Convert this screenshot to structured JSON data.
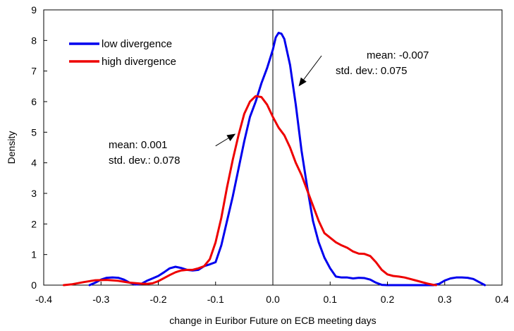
{
  "chart_data": {
    "type": "line",
    "title": "",
    "xlabel": "change in Euribor Future on ECB meeting days",
    "ylabel": "Density",
    "xlim": [
      -0.4,
      0.4
    ],
    "ylim": [
      0,
      9
    ],
    "xticks": [
      -0.4,
      -0.3,
      -0.2,
      -0.1,
      0.0,
      0.1,
      0.2,
      0.3,
      0.4
    ],
    "xtick_labels": [
      "-0.4",
      "-0.3",
      "-0.2",
      "-0.1",
      "0.0",
      "0.1",
      "0.2",
      "0.3",
      "0.4"
    ],
    "yticks": [
      0,
      1,
      2,
      3,
      4,
      5,
      6,
      7,
      8,
      9
    ],
    "ytick_labels": [
      "0",
      "1",
      "2",
      "3",
      "4",
      "5",
      "6",
      "7",
      "8",
      "9"
    ],
    "grid": false,
    "reference_line": {
      "x": 0.0,
      "color": "#000000"
    },
    "legend": {
      "position": "top-left"
    },
    "series": [
      {
        "name": "low divergence",
        "color": "#0000ee",
        "points": [
          [
            -0.32,
            0.0
          ],
          [
            -0.31,
            0.08
          ],
          [
            -0.3,
            0.18
          ],
          [
            -0.29,
            0.24
          ],
          [
            -0.28,
            0.25
          ],
          [
            -0.27,
            0.24
          ],
          [
            -0.26,
            0.18
          ],
          [
            -0.25,
            0.08
          ],
          [
            -0.24,
            0.02
          ],
          [
            -0.23,
            0.04
          ],
          [
            -0.22,
            0.14
          ],
          [
            -0.21,
            0.22
          ],
          [
            -0.2,
            0.3
          ],
          [
            -0.19,
            0.42
          ],
          [
            -0.18,
            0.55
          ],
          [
            -0.17,
            0.6
          ],
          [
            -0.16,
            0.56
          ],
          [
            -0.15,
            0.5
          ],
          [
            -0.14,
            0.48
          ],
          [
            -0.13,
            0.5
          ],
          [
            -0.12,
            0.62
          ],
          [
            -0.11,
            0.68
          ],
          [
            -0.1,
            0.75
          ],
          [
            -0.09,
            1.3
          ],
          [
            -0.08,
            2.1
          ],
          [
            -0.07,
            2.9
          ],
          [
            -0.06,
            3.8
          ],
          [
            -0.05,
            4.7
          ],
          [
            -0.04,
            5.5
          ],
          [
            -0.03,
            6.0
          ],
          [
            -0.02,
            6.6
          ],
          [
            -0.01,
            7.1
          ],
          [
            0.0,
            7.7
          ],
          [
            0.005,
            8.1
          ],
          [
            0.01,
            8.25
          ],
          [
            0.015,
            8.22
          ],
          [
            0.02,
            8.05
          ],
          [
            0.03,
            7.2
          ],
          [
            0.04,
            5.9
          ],
          [
            0.05,
            4.4
          ],
          [
            0.06,
            3.2
          ],
          [
            0.07,
            2.1
          ],
          [
            0.08,
            1.4
          ],
          [
            0.09,
            0.9
          ],
          [
            0.1,
            0.55
          ],
          [
            0.11,
            0.28
          ],
          [
            0.12,
            0.25
          ],
          [
            0.13,
            0.25
          ],
          [
            0.14,
            0.22
          ],
          [
            0.15,
            0.24
          ],
          [
            0.16,
            0.23
          ],
          [
            0.17,
            0.18
          ],
          [
            0.18,
            0.08
          ],
          [
            0.19,
            0.01
          ],
          [
            0.2,
            0.0
          ],
          [
            0.25,
            0.0
          ],
          [
            0.28,
            0.0
          ],
          [
            0.29,
            0.04
          ],
          [
            0.3,
            0.15
          ],
          [
            0.31,
            0.22
          ],
          [
            0.32,
            0.25
          ],
          [
            0.33,
            0.25
          ],
          [
            0.34,
            0.24
          ],
          [
            0.35,
            0.2
          ],
          [
            0.36,
            0.1
          ],
          [
            0.37,
            0.0
          ]
        ]
      },
      {
        "name": "high divergence",
        "color": "#ee0000",
        "points": [
          [
            -0.365,
            0.0
          ],
          [
            -0.35,
            0.03
          ],
          [
            -0.33,
            0.1
          ],
          [
            -0.31,
            0.16
          ],
          [
            -0.29,
            0.17
          ],
          [
            -0.27,
            0.14
          ],
          [
            -0.25,
            0.08
          ],
          [
            -0.23,
            0.05
          ],
          [
            -0.22,
            0.04
          ],
          [
            -0.21,
            0.06
          ],
          [
            -0.2,
            0.13
          ],
          [
            -0.19,
            0.23
          ],
          [
            -0.18,
            0.33
          ],
          [
            -0.17,
            0.42
          ],
          [
            -0.16,
            0.48
          ],
          [
            -0.15,
            0.5
          ],
          [
            -0.14,
            0.5
          ],
          [
            -0.13,
            0.55
          ],
          [
            -0.12,
            0.62
          ],
          [
            -0.11,
            0.85
          ],
          [
            -0.1,
            1.4
          ],
          [
            -0.09,
            2.2
          ],
          [
            -0.08,
            3.2
          ],
          [
            -0.07,
            4.1
          ],
          [
            -0.06,
            4.9
          ],
          [
            -0.05,
            5.6
          ],
          [
            -0.04,
            6.0
          ],
          [
            -0.03,
            6.18
          ],
          [
            -0.02,
            6.15
          ],
          [
            -0.01,
            5.9
          ],
          [
            0.0,
            5.5
          ],
          [
            0.01,
            5.15
          ],
          [
            0.02,
            4.9
          ],
          [
            0.03,
            4.5
          ],
          [
            0.04,
            4.0
          ],
          [
            0.05,
            3.6
          ],
          [
            0.06,
            3.1
          ],
          [
            0.07,
            2.6
          ],
          [
            0.08,
            2.1
          ],
          [
            0.09,
            1.7
          ],
          [
            0.1,
            1.55
          ],
          [
            0.11,
            1.4
          ],
          [
            0.12,
            1.3
          ],
          [
            0.13,
            1.22
          ],
          [
            0.14,
            1.1
          ],
          [
            0.15,
            1.03
          ],
          [
            0.16,
            1.02
          ],
          [
            0.17,
            0.95
          ],
          [
            0.18,
            0.75
          ],
          [
            0.19,
            0.5
          ],
          [
            0.2,
            0.35
          ],
          [
            0.21,
            0.3
          ],
          [
            0.22,
            0.28
          ],
          [
            0.23,
            0.25
          ],
          [
            0.24,
            0.2
          ],
          [
            0.25,
            0.15
          ],
          [
            0.26,
            0.1
          ],
          [
            0.27,
            0.05
          ],
          [
            0.28,
            0.01
          ],
          [
            0.285,
            0.0
          ]
        ]
      }
    ],
    "annotations": [
      {
        "lines": [
          "mean: -0.007",
          "std. dev.: 0.075"
        ],
        "arrow_from": [
          0.085,
          7.5
        ],
        "arrow_to": [
          0.045,
          6.5
        ]
      },
      {
        "lines": [
          "mean: 0.001",
          "std. dev.: 0.078"
        ],
        "arrow_from": [
          -0.1,
          4.55
        ],
        "arrow_to": [
          -0.065,
          4.95
        ]
      }
    ]
  }
}
